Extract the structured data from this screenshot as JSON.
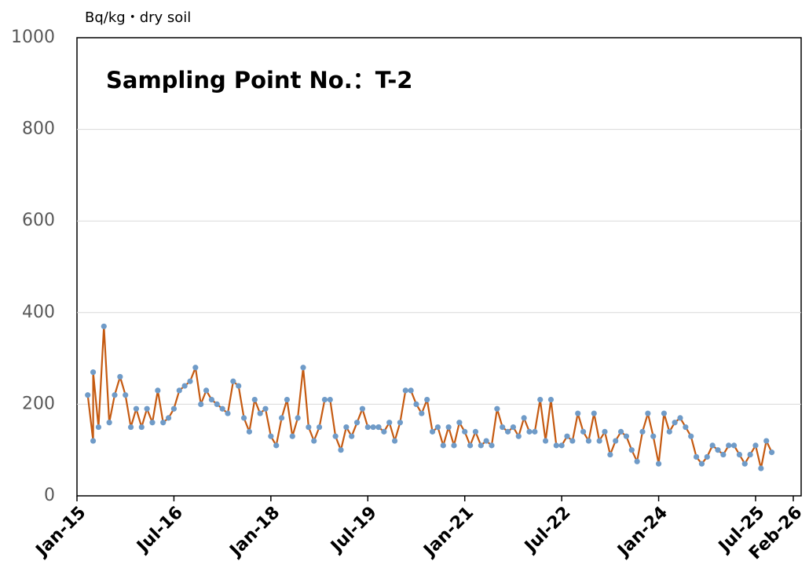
{
  "chart_data": {
    "type": "line",
    "title": "Sampling Point No.：T-2",
    "y_axis_label": "Bq/kg・dry soil",
    "x": [
      "2015-03",
      "2015-04",
      "2015-04",
      "2015-05",
      "2015-06",
      "2015-07",
      "2015-08",
      "2015-09",
      "2015-10",
      "2015-11",
      "2015-12",
      "2016-01",
      "2016-02",
      "2016-03",
      "2016-04",
      "2016-05",
      "2016-06",
      "2016-07",
      "2016-08",
      "2016-09",
      "2016-10",
      "2016-11",
      "2016-12",
      "2017-01",
      "2017-02",
      "2017-03",
      "2017-04",
      "2017-05",
      "2017-06",
      "2017-07",
      "2017-08",
      "2017-09",
      "2017-10",
      "2017-11",
      "2017-12",
      "2018-01",
      "2018-02",
      "2018-03",
      "2018-04",
      "2018-05",
      "2018-06",
      "2018-07",
      "2018-08",
      "2018-09",
      "2018-10",
      "2018-11",
      "2018-12",
      "2019-01",
      "2019-02",
      "2019-03",
      "2019-04",
      "2019-05",
      "2019-06",
      "2019-07",
      "2019-08",
      "2019-09",
      "2019-09",
      "2019-10",
      "2019-11",
      "2019-12",
      "2020-01",
      "2020-02",
      "2020-03",
      "2020-04",
      "2020-05",
      "2020-06",
      "2020-07",
      "2020-08",
      "2020-09",
      "2020-10",
      "2020-11",
      "2020-12",
      "2021-01",
      "2021-02",
      "2021-03",
      "2021-04",
      "2021-05",
      "2021-06",
      "2021-07",
      "2021-08",
      "2021-09",
      "2021-10",
      "2021-11",
      "2021-12",
      "2022-01",
      "2022-02",
      "2022-03",
      "2022-04",
      "2022-05",
      "2022-06",
      "2022-07",
      "2022-08",
      "2022-09",
      "2022-10",
      "2022-11",
      "2022-12",
      "2023-01",
      "2023-02",
      "2023-03",
      "2023-04",
      "2023-05",
      "2023-06",
      "2023-07",
      "2023-08",
      "2023-09",
      "2023-10",
      "2023-11",
      "2023-12",
      "2024-01",
      "2024-02",
      "2024-03",
      "2024-04",
      "2024-05",
      "2024-06",
      "2024-07",
      "2024-08",
      "2024-09",
      "2024-10",
      "2024-11",
      "2024-12",
      "2025-01",
      "2025-02",
      "2025-03",
      "2025-04",
      "2025-05",
      "2025-06",
      "2025-07",
      "2025-08",
      "2025-09",
      "2025-10"
    ],
    "series": [
      {
        "color": "#c55a11",
        "marker_color": "#6f9bc8",
        "values": [
          220,
          120,
          270,
          150,
          370,
          160,
          220,
          260,
          220,
          150,
          190,
          150,
          190,
          160,
          230,
          160,
          170,
          190,
          230,
          240,
          250,
          280,
          200,
          230,
          210,
          200,
          190,
          180,
          250,
          240,
          170,
          140,
          210,
          180,
          190,
          130,
          110,
          170,
          210,
          130,
          170,
          280,
          150,
          120,
          150,
          210,
          210,
          130,
          100,
          150,
          130,
          160,
          190,
          150,
          150,
          150,
          150,
          140,
          160,
          120,
          160,
          230,
          230,
          200,
          180,
          210,
          140,
          150,
          110,
          150,
          110,
          160,
          140,
          110,
          140,
          110,
          120,
          110,
          190,
          150,
          140,
          150,
          130,
          170,
          140,
          140,
          210,
          120,
          210,
          110,
          110,
          130,
          120,
          180,
          140,
          120,
          180,
          120,
          140,
          90,
          120,
          140,
          130,
          100,
          75,
          140,
          180,
          130,
          70,
          180,
          140,
          160,
          170,
          150,
          130,
          85,
          70,
          85,
          110,
          100,
          90,
          110,
          110,
          90,
          70,
          90,
          110,
          60,
          120,
          95
        ]
      }
    ],
    "xlim": [
      "2015-01",
      "2026-02"
    ],
    "xticks": [
      {
        "value": "2015-01",
        "label": "Jan-15"
      },
      {
        "value": "2016-07",
        "label": "Jul-16"
      },
      {
        "value": "2018-01",
        "label": "Jan-18"
      },
      {
        "value": "2019-07",
        "label": "Jul-19"
      },
      {
        "value": "2021-01",
        "label": "Jan-21"
      },
      {
        "value": "2022-07",
        "label": "Jul-22"
      },
      {
        "value": "2024-01",
        "label": "Jan-24"
      },
      {
        "value": "2025-07",
        "label": "Jul-25"
      },
      {
        "value": "2026-02",
        "label": "Feb-26"
      }
    ],
    "ylim": [
      0,
      1000
    ],
    "yticks": [
      0,
      200,
      400,
      600,
      800,
      1000
    ],
    "grid": true
  }
}
